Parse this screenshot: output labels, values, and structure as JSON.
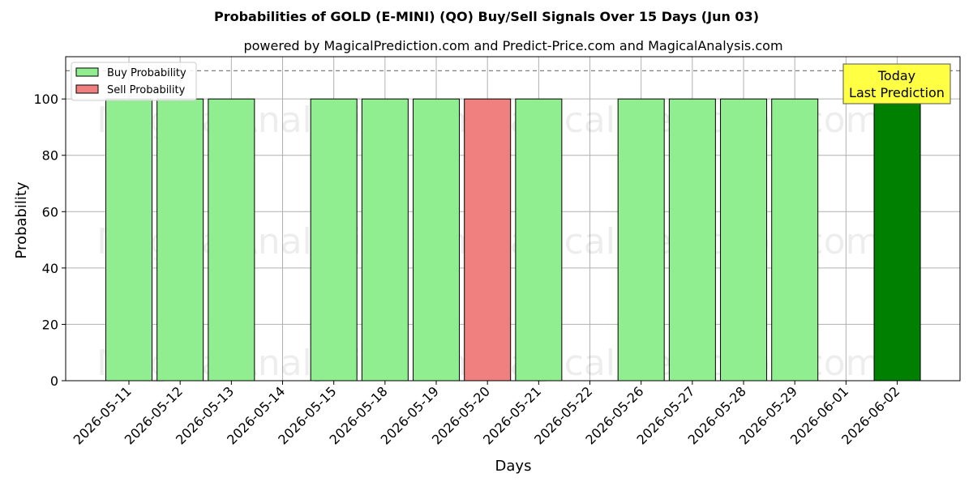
{
  "chart_data": {
    "type": "bar",
    "title": "Probabilities of GOLD (E-MINI) (QO) Buy/Sell Signals Over 15 Days (Jun 03)",
    "subtitle": "powered by MagicalPrediction.com and Predict-Price.com and MagicalAnalysis.com",
    "xlabel": "Days",
    "ylabel": "Probability",
    "ylim": [
      0,
      115
    ],
    "yticks": [
      0,
      20,
      40,
      60,
      80,
      100
    ],
    "reference_line": 110,
    "grid": true,
    "legend_position": "top-left",
    "categories": [
      "2026-05-11",
      "2026-05-12",
      "2026-05-13",
      "2026-05-14",
      "2026-05-15",
      "2026-05-18",
      "2026-05-19",
      "2026-05-20",
      "2026-05-21",
      "2026-05-22",
      "2026-05-26",
      "2026-05-27",
      "2026-05-28",
      "2026-05-29",
      "2026-06-01",
      "2026-06-02"
    ],
    "series": [
      {
        "name": "Buy Probability",
        "color": "#90ee90",
        "values": [
          100,
          100,
          100,
          0,
          100,
          100,
          100,
          0,
          100,
          0,
          100,
          100,
          100,
          100,
          0,
          100
        ]
      },
      {
        "name": "Sell Probability",
        "color": "#f08080",
        "values": [
          0,
          0,
          0,
          0,
          0,
          0,
          0,
          100,
          0,
          0,
          0,
          0,
          0,
          0,
          0,
          0
        ]
      }
    ],
    "highlight": {
      "category": "2026-06-02",
      "color": "#008000"
    },
    "annotation": {
      "line1": "Today",
      "line2": "Last Prediction",
      "background": "#ffff44"
    },
    "watermarks": [
      "MagicalAnalysis.com",
      "MagicalPrediction.com"
    ]
  }
}
